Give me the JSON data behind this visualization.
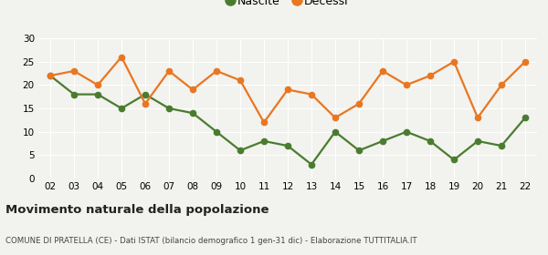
{
  "years": [
    "02",
    "03",
    "04",
    "05",
    "06",
    "07",
    "08",
    "09",
    "10",
    "11",
    "12",
    "13",
    "14",
    "15",
    "16",
    "17",
    "18",
    "19",
    "20",
    "21",
    "22"
  ],
  "nascite": [
    22,
    18,
    18,
    15,
    18,
    15,
    14,
    10,
    6,
    8,
    7,
    3,
    10,
    6,
    8,
    10,
    8,
    4,
    8,
    7,
    13
  ],
  "decessi": [
    22,
    23,
    20,
    26,
    16,
    23,
    19,
    23,
    21,
    12,
    19,
    18,
    13,
    16,
    23,
    20,
    22,
    25,
    13,
    20,
    25
  ],
  "nascite_color": "#4a7c2f",
  "decessi_color": "#e87722",
  "background_color": "#f2f2ee",
  "ylim": [
    0,
    30
  ],
  "yticks": [
    0,
    5,
    10,
    15,
    20,
    25,
    30
  ],
  "title": "Movimento naturale della popolazione",
  "subtitle": "COMUNE DI PRATELLA (CE) - Dati ISTAT (bilancio demografico 1 gen-31 dic) - Elaborazione TUTTITALIA.IT",
  "legend_nascite": "Nascite",
  "legend_decessi": "Decessi",
  "marker_size": 4.5,
  "linewidth": 1.6
}
